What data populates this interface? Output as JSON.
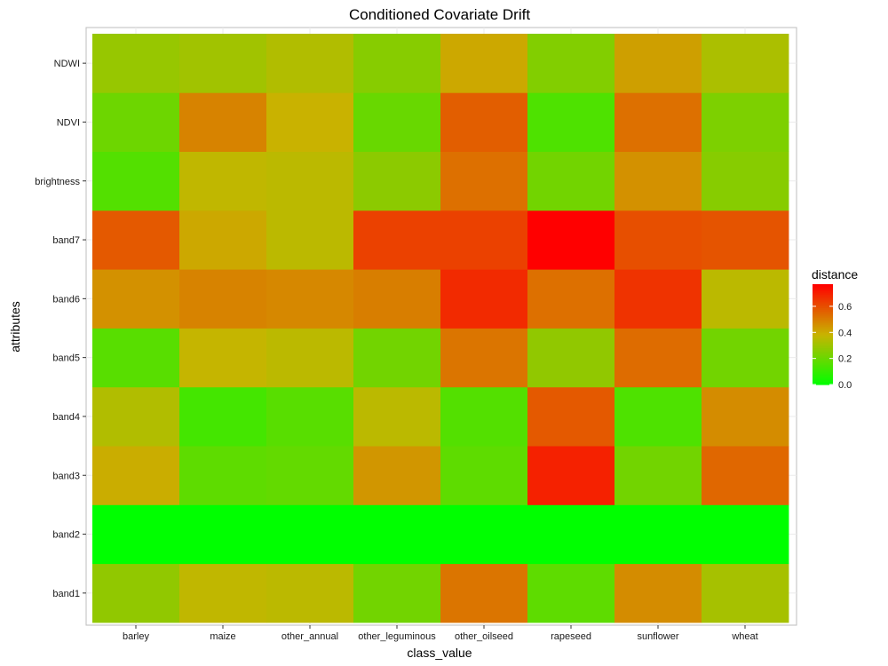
{
  "chart_data": {
    "type": "heatmap",
    "title": "Conditioned Covariate Drift",
    "xlabel": "class_value",
    "ylabel": "attributes",
    "x_categories": [
      "barley",
      "maize",
      "other_annual",
      "other_leguminous",
      "other_oilseed",
      "rapeseed",
      "sunflower",
      "wheat"
    ],
    "y_categories": [
      "band1",
      "band2",
      "band3",
      "band4",
      "band5",
      "band6",
      "band7",
      "brightness",
      "NDVI",
      "NDWI"
    ],
    "values": [
      [
        0.28,
        0.37,
        0.36,
        0.22,
        0.52,
        0.18,
        0.47,
        0.32
      ],
      [
        0.0,
        0.0,
        0.0,
        0.0,
        0.0,
        0.0,
        0.0,
        0.0
      ],
      [
        0.4,
        0.18,
        0.19,
        0.45,
        0.18,
        0.7,
        0.22,
        0.55
      ],
      [
        0.34,
        0.13,
        0.17,
        0.36,
        0.16,
        0.58,
        0.15,
        0.47
      ],
      [
        0.17,
        0.38,
        0.36,
        0.22,
        0.52,
        0.28,
        0.54,
        0.22
      ],
      [
        0.46,
        0.49,
        0.48,
        0.5,
        0.68,
        0.53,
        0.66,
        0.36
      ],
      [
        0.58,
        0.41,
        0.36,
        0.63,
        0.63,
        0.77,
        0.6,
        0.59
      ],
      [
        0.16,
        0.37,
        0.36,
        0.27,
        0.53,
        0.22,
        0.46,
        0.26
      ],
      [
        0.21,
        0.49,
        0.39,
        0.2,
        0.57,
        0.15,
        0.53,
        0.24
      ],
      [
        0.29,
        0.31,
        0.34,
        0.26,
        0.41,
        0.25,
        0.43,
        0.33
      ]
    ],
    "legend": {
      "title": "distance",
      "ticks": [
        "0.0",
        "0.2",
        "0.4",
        "0.6"
      ],
      "tick_values": [
        0.0,
        0.2,
        0.4,
        0.6
      ],
      "range": [
        0,
        0.77
      ],
      "placement": "right"
    },
    "colors": {
      "low": "#00ff00",
      "mid": "#c8b400",
      "high": "#ff0000",
      "panel_border": "#bdbdbd",
      "grid": "#ebebeb"
    },
    "grid": true
  }
}
